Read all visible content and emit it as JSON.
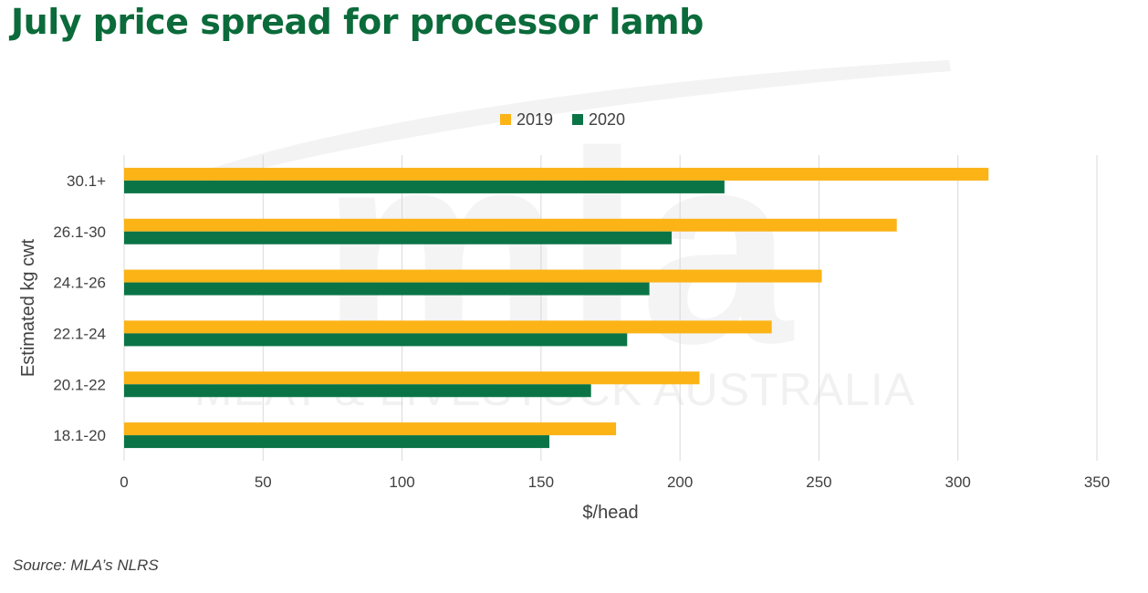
{
  "header": {
    "title": "July price spread for processor lamb"
  },
  "watermark": {
    "logo_text": "mla",
    "tagline": "MEAT & LIVESTOCK AUSTRALIA"
  },
  "footer": {
    "source": "Source: MLA’s NLRS"
  },
  "chart_data": {
    "type": "bar",
    "orientation": "horizontal",
    "categories": [
      "30.1+",
      "26.1-30",
      "24.1-26",
      "22.1-24",
      "20.1-22",
      "18.1-20"
    ],
    "series": [
      {
        "name": "2019",
        "color": "#fbb316",
        "values": [
          311,
          278,
          251,
          233,
          207,
          177
        ]
      },
      {
        "name": "2020",
        "color": "#0b7446",
        "values": [
          216,
          197,
          189,
          181,
          168,
          153
        ]
      }
    ],
    "xlabel": "$/head",
    "ylabel": "Estimated kg cwt",
    "xlim": [
      0,
      350
    ],
    "xticks": [
      0,
      50,
      100,
      150,
      200,
      250,
      300,
      350
    ],
    "grid": "vertical",
    "legend_position": "top-center"
  }
}
